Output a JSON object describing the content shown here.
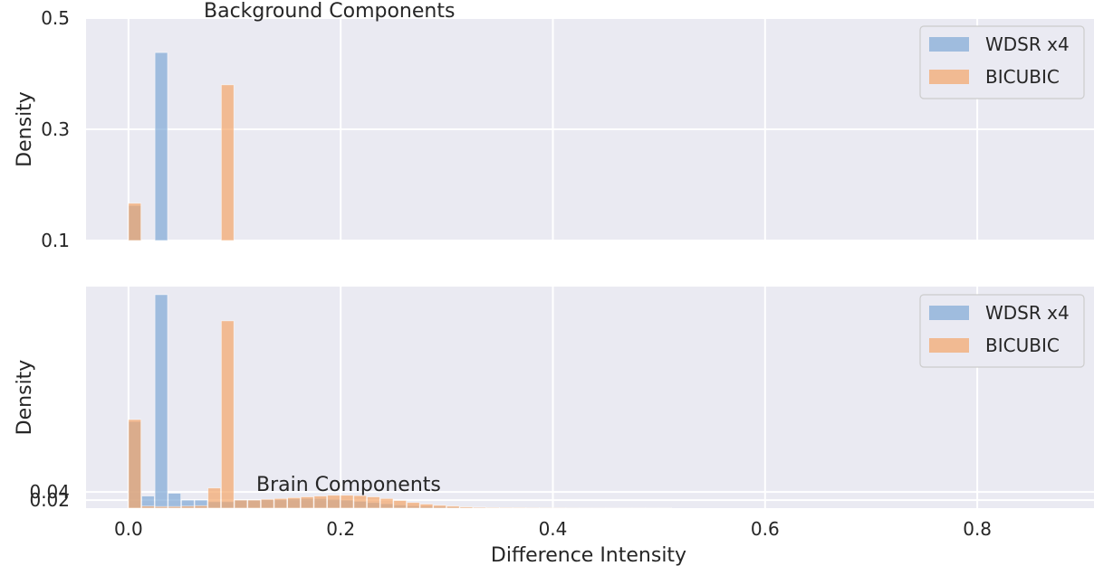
{
  "chart_data": [
    {
      "type": "bar",
      "annotation": "Background Components",
      "xlabel": "",
      "ylabel": "Density",
      "xlim": [
        -0.04,
        0.91
      ],
      "ylim": [
        0.1,
        0.5
      ],
      "yticks": [
        "0.1",
        "0.3",
        "0.5"
      ],
      "grid": true,
      "legend_position": "top-right",
      "bin_width": 0.0125,
      "series": [
        {
          "name": "WDSR x4",
          "color": "#7fa8d6",
          "bins": [
            [
              0.0,
              0.163
            ],
            [
              0.025,
              0.438
            ]
          ]
        },
        {
          "name": "BICUBIC",
          "color": "#f4a56a",
          "bins": [
            [
              0.0,
              0.167
            ],
            [
              0.0875,
              0.38
            ]
          ]
        }
      ]
    },
    {
      "type": "bar",
      "annotation": "Brain Components",
      "xlabel": "Difference Intensity",
      "ylabel": "Density",
      "xlim": [
        -0.04,
        0.91
      ],
      "ylim": [
        0.0,
        0.55
      ],
      "yticks": [
        "0.02",
        "0.04"
      ],
      "xticks": [
        "0.0",
        "0.2",
        "0.4",
        "0.6",
        "0.8"
      ],
      "grid": true,
      "legend_position": "top-right",
      "bin_width": 0.0125,
      "series": [
        {
          "name": "WDSR x4",
          "color": "#7fa8d6",
          "bins": [
            [
              0.0,
              0.215
            ],
            [
              0.0125,
              0.03
            ],
            [
              0.025,
              0.53
            ],
            [
              0.0375,
              0.037
            ],
            [
              0.05,
              0.02
            ],
            [
              0.0625,
              0.02
            ],
            [
              0.075,
              0.016
            ],
            [
              0.0875,
              0.016
            ],
            [
              0.1,
              0.02
            ],
            [
              0.1125,
              0.02
            ],
            [
              0.125,
              0.021
            ],
            [
              0.1375,
              0.021
            ],
            [
              0.15,
              0.023
            ],
            [
              0.1625,
              0.024
            ],
            [
              0.175,
              0.024
            ],
            [
              0.1875,
              0.022
            ],
            [
              0.2,
              0.02
            ],
            [
              0.2125,
              0.017
            ],
            [
              0.225,
              0.014
            ],
            [
              0.2375,
              0.011
            ],
            [
              0.25,
              0.008
            ],
            [
              0.2625,
              0.006
            ],
            [
              0.275,
              0.005
            ],
            [
              0.2875,
              0.004
            ],
            [
              0.3,
              0.003
            ],
            [
              0.3125,
              0.002
            ],
            [
              0.325,
              0.002
            ],
            [
              0.3375,
              0.0015
            ],
            [
              0.35,
              0.0012
            ],
            [
              0.3625,
              0.001
            ],
            [
              0.375,
              0.0008
            ],
            [
              0.3875,
              0.0006
            ],
            [
              0.4,
              0.0005
            ],
            [
              0.4125,
              0.0004
            ],
            [
              0.425,
              0.0003
            ],
            [
              0.4375,
              0.0003
            ],
            [
              0.45,
              0.0002
            ],
            [
              0.4625,
              0.0002
            ],
            [
              0.475,
              0.0002
            ],
            [
              0.4875,
              0.0001
            ],
            [
              0.5,
              0.0001
            ]
          ]
        },
        {
          "name": "BICUBIC",
          "color": "#f4a56a",
          "bins": [
            [
              0.0,
              0.22
            ],
            [
              0.0125,
              0.005
            ],
            [
              0.025,
              0.004
            ],
            [
              0.0375,
              0.004
            ],
            [
              0.05,
              0.005
            ],
            [
              0.0625,
              0.006
            ],
            [
              0.075,
              0.05
            ],
            [
              0.0875,
              0.465
            ],
            [
              0.1,
              0.02
            ],
            [
              0.1125,
              0.02
            ],
            [
              0.125,
              0.022
            ],
            [
              0.1375,
              0.024
            ],
            [
              0.15,
              0.026
            ],
            [
              0.1625,
              0.028
            ],
            [
              0.175,
              0.03
            ],
            [
              0.1875,
              0.032
            ],
            [
              0.2,
              0.032
            ],
            [
              0.2125,
              0.031
            ],
            [
              0.225,
              0.028
            ],
            [
              0.2375,
              0.024
            ],
            [
              0.25,
              0.019
            ],
            [
              0.2625,
              0.014
            ],
            [
              0.275,
              0.01
            ],
            [
              0.2875,
              0.007
            ],
            [
              0.3,
              0.005
            ],
            [
              0.3125,
              0.003
            ],
            [
              0.325,
              0.002
            ],
            [
              0.3375,
              0.0015
            ],
            [
              0.35,
              0.0012
            ],
            [
              0.3625,
              0.001
            ],
            [
              0.375,
              0.0008
            ],
            [
              0.3875,
              0.0006
            ],
            [
              0.4,
              0.0005
            ],
            [
              0.4125,
              0.0004
            ],
            [
              0.425,
              0.0003
            ],
            [
              0.4375,
              0.0003
            ],
            [
              0.45,
              0.0002
            ],
            [
              0.4625,
              0.0002
            ],
            [
              0.475,
              0.0002
            ],
            [
              0.4875,
              0.0001
            ],
            [
              0.5,
              0.0001
            ]
          ]
        }
      ]
    }
  ]
}
